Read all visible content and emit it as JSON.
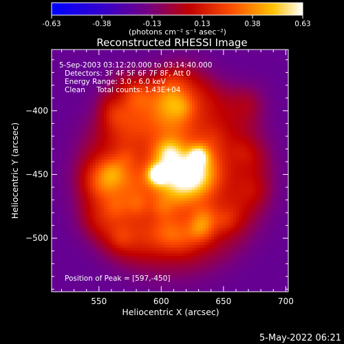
{
  "chart_data": {
    "type": "heatmap",
    "title": "Reconstructed RHESSI Image",
    "xlabel": "Heliocentric X (arcsec)",
    "ylabel": "Heliocentric Y (arcsec)",
    "xlim": [
      512,
      702
    ],
    "ylim": [
      -542,
      -352
    ],
    "x_ticks": [
      550,
      600,
      650,
      700
    ],
    "y_ticks": [
      -400,
      -450,
      -500
    ],
    "colorbar": {
      "min": -0.63,
      "max": 0.63,
      "ticks": [
        "-0.63",
        "-0.38",
        "-0.13",
        "0.13",
        "0.38",
        "0.63"
      ],
      "unit_label": "(photons cm⁻² s⁻¹ asec⁻²)"
    },
    "info_lines": [
      "5-Sep-2003 03:12:20.000 to 03:14:40.000",
      "Detectors: 3F 4F 5F 6F 7F 8F, Att 0",
      "Energy Range: 3.0 - 6.0 keV",
      "Clean     Total counts: 1.43E+04"
    ],
    "peak_text": "Position of Peak = [597,-450]",
    "sources": [
      {
        "x": 597,
        "y": -450,
        "value": 0.63
      },
      {
        "x": 630,
        "y": -435,
        "value": 0.45
      }
    ],
    "background_value": -0.2
  },
  "footer_date": "5-May-2022 06:21"
}
